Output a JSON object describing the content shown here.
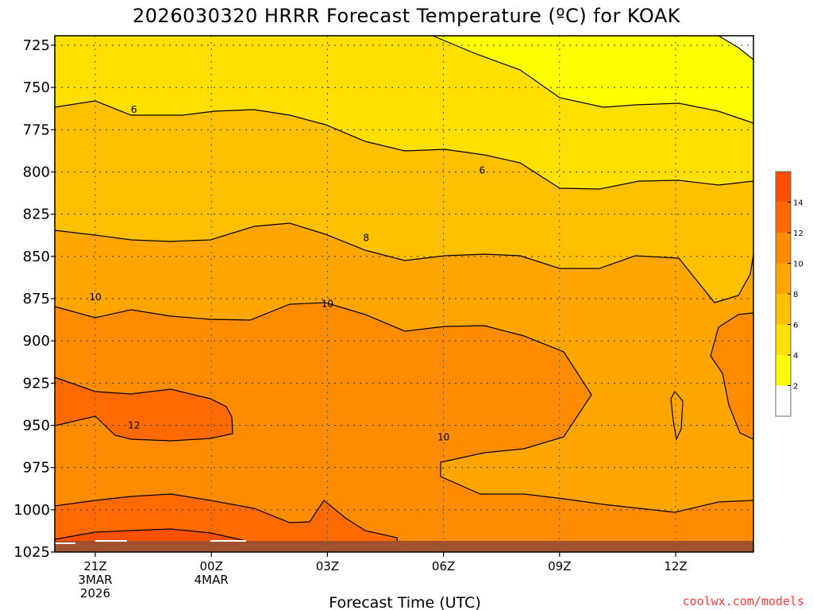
{
  "chart_data": {
    "type": "heatmap",
    "title": "2026030320 HRRR Forecast Temperature (ºC) for KOAK",
    "xlabel": "Forecast Time (UTC)",
    "ylabel": "",
    "credit": "coolwx.com/models",
    "y_axis": {
      "ticks": [
        725,
        750,
        775,
        800,
        825,
        850,
        875,
        900,
        925,
        950,
        975,
        1000,
        1025
      ]
    },
    "x_axis": {
      "ticks": [
        {
          "lines": [
            "21Z",
            "3MAR",
            "2026"
          ]
        },
        {
          "lines": [
            "00Z",
            "4MAR"
          ]
        },
        {
          "lines": [
            "03Z"
          ]
        },
        {
          "lines": [
            "06Z"
          ]
        },
        {
          "lines": [
            "09Z"
          ]
        },
        {
          "lines": [
            "12Z"
          ]
        }
      ]
    },
    "colorbar": {
      "ticks": [
        2,
        4,
        6,
        8,
        10,
        12,
        14
      ],
      "bins": [
        {
          "range": [
            0,
            2
          ],
          "color": "#ffffff"
        },
        {
          "range": [
            2,
            4
          ],
          "color": "#ffff00"
        },
        {
          "range": [
            4,
            6
          ],
          "color": "#ffe000"
        },
        {
          "range": [
            6,
            8
          ],
          "color": "#ffc000"
        },
        {
          "range": [
            8,
            10
          ],
          "color": "#ffa500"
        },
        {
          "range": [
            10,
            12
          ],
          "color": "#ff8c00"
        },
        {
          "range": [
            12,
            14
          ],
          "color": "#ff6a00"
        },
        {
          "range": [
            14,
            16
          ],
          "color": "#ff5000"
        }
      ]
    },
    "contour_labels": [
      {
        "text": "6",
        "hour": 1.0,
        "p": 763
      },
      {
        "text": "6",
        "hour": 10.0,
        "p": 799
      },
      {
        "text": "8",
        "hour": 7.0,
        "p": 839
      },
      {
        "text": "10",
        "hour": 0.0,
        "p": 874
      },
      {
        "text": "10",
        "hour": 6.0,
        "p": 878
      },
      {
        "text": "10",
        "hour": 9.0,
        "p": 957
      },
      {
        "text": "12",
        "hour": 1.0,
        "p": 950
      }
    ],
    "grid": true,
    "ground_color": "#a0522d"
  }
}
